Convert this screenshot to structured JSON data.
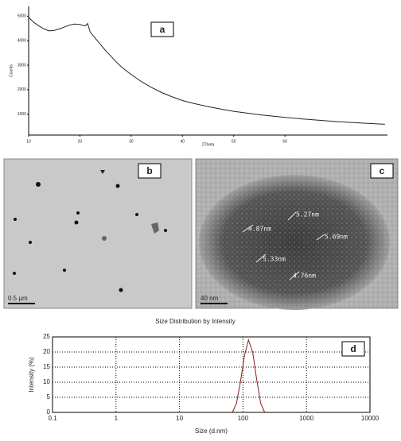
{
  "chart_data": [
    {
      "type": "line",
      "panel_label": "a",
      "x_label": "2Theta",
      "y_label": "Counts",
      "x": [
        10,
        11,
        12,
        13,
        14,
        15,
        16,
        17,
        18,
        19,
        20,
        21,
        21.5,
        22,
        23,
        24,
        25,
        26,
        27,
        28,
        29,
        30,
        32,
        34,
        36,
        38,
        40,
        42,
        45,
        48,
        50,
        55,
        60,
        65,
        70,
        75,
        79.5
      ],
      "series": [
        {
          "color": "#222222",
          "values": [
            4950,
            4750,
            4600,
            4480,
            4400,
            4420,
            4480,
            4560,
            4640,
            4680,
            4660,
            4600,
            4700,
            4350,
            4100,
            3850,
            3600,
            3380,
            3150,
            2950,
            2780,
            2620,
            2330,
            2090,
            1880,
            1710,
            1560,
            1450,
            1310,
            1190,
            1120,
            980,
            870,
            780,
            700,
            640,
            590
          ]
        }
      ],
      "xlim": [
        10,
        80
      ],
      "xticks": [
        10,
        20,
        30,
        40,
        50,
        60
      ],
      "ylim": [
        150,
        5400
      ],
      "yticks": [
        1000,
        2000,
        3000,
        4000,
        5000
      ],
      "grid": false
    },
    {
      "type": "line",
      "title": "Size Distribution by Intensity",
      "panel_label": "d",
      "x_label": "Size (d.nm)",
      "y_label": "Intensity (%)",
      "x_scale": "log",
      "x": [
        68,
        79,
        91,
        106,
        122,
        142,
        164,
        190,
        220
      ],
      "series": [
        {
          "color": "#8b1a1a",
          "values": [
            0,
            3,
            10,
            19,
            24,
            20,
            11,
            3,
            0
          ]
        }
      ],
      "xlim": [
        0.1,
        10000
      ],
      "xticks": [
        0.1,
        1,
        10,
        100,
        1000,
        10000
      ],
      "ylim": [
        0,
        25
      ],
      "yticks": [
        0,
        5,
        10,
        15,
        20,
        25
      ],
      "grid": true
    }
  ],
  "images": [
    {
      "panel_label": "b",
      "scale_bar": "0.5 µm"
    },
    {
      "panel_label": "c",
      "scale_bar": "40 nm",
      "annotations": [
        "5.27nm",
        "4.87nm",
        "5.69nm",
        "5.33nm",
        "4.76nm"
      ]
    }
  ]
}
